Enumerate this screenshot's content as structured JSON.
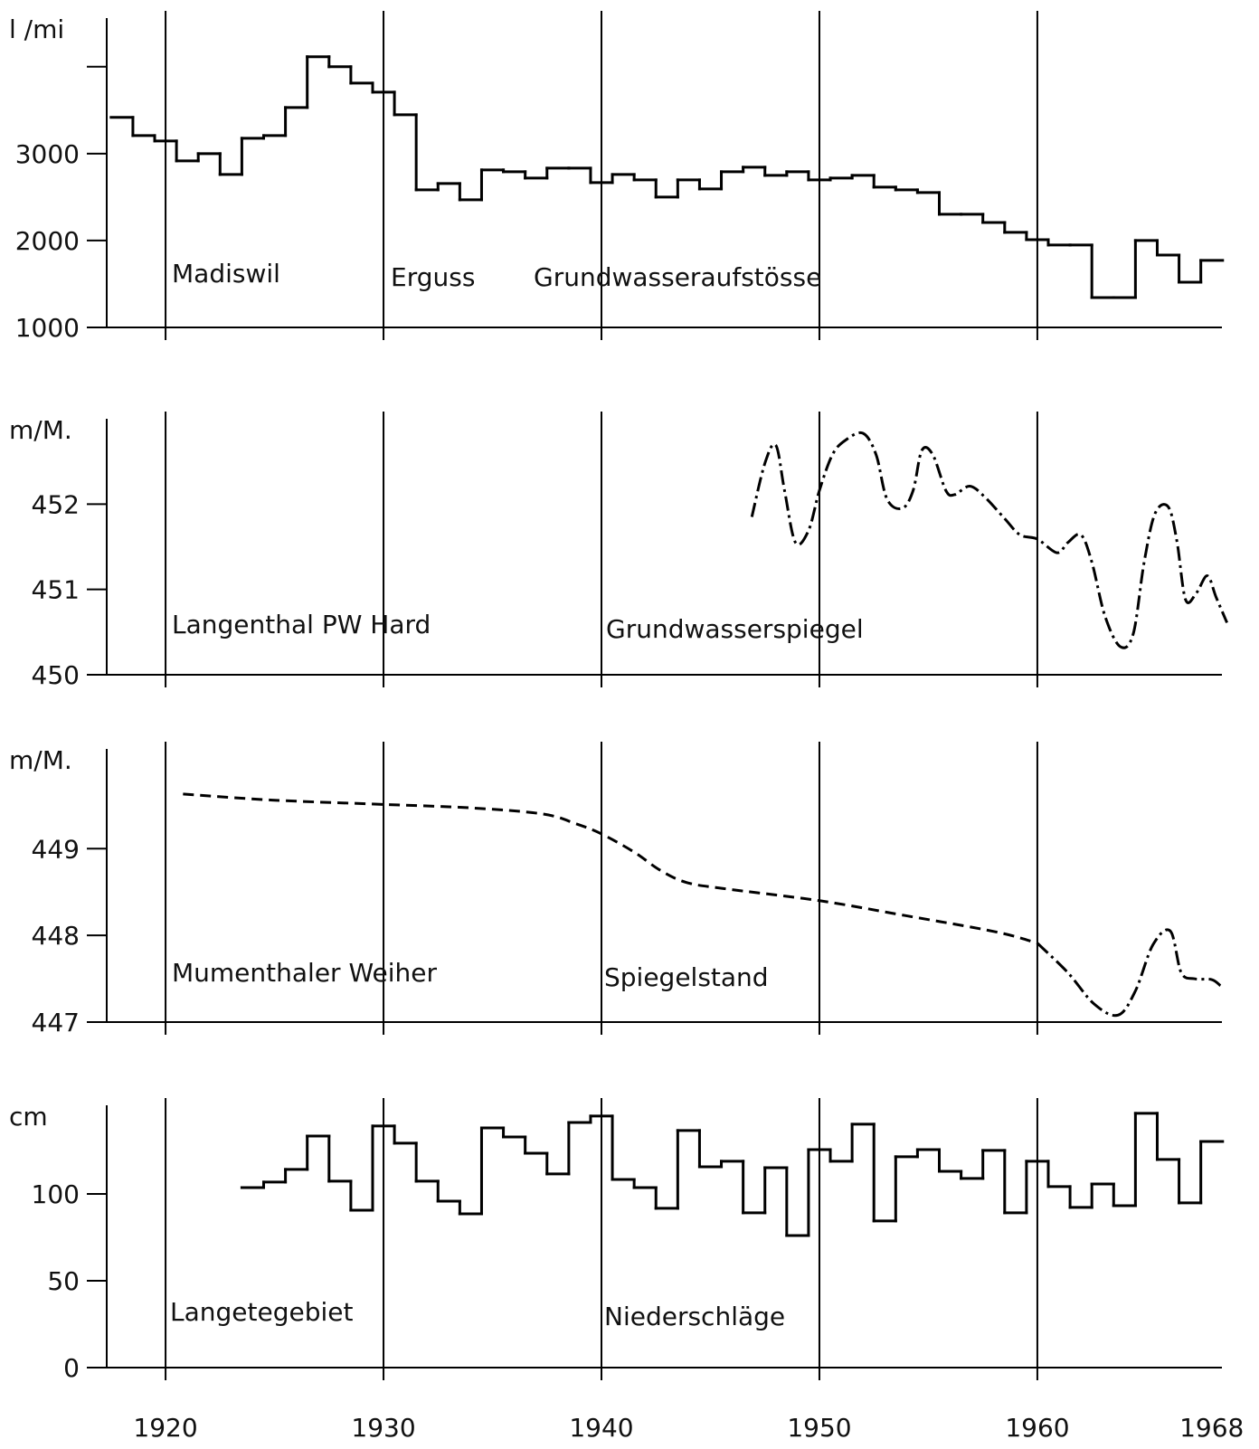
{
  "chart_data": [
    {
      "type": "step",
      "ylabel": "l /mi",
      "annotations": [
        "Madiswil",
        "Erguss",
        "Grundwasseraufstösse"
      ],
      "xlim": [
        1917.3,
        1968.8
      ],
      "xgrid": [
        1920,
        1930,
        1940,
        1950,
        1960
      ],
      "ylim": [
        1000,
        4560
      ],
      "yticks": [
        1000,
        2000,
        3000,
        {
          "value": 4000,
          "label": null
        }
      ],
      "series": [
        {
          "color": "#000000",
          "style": "solid",
          "x": [
            1918,
            1919,
            1920,
            1921,
            1922,
            1923,
            1924,
            1925,
            1926,
            1927,
            1928,
            1929,
            1930,
            1931,
            1932,
            1933,
            1934,
            1935,
            1936,
            1937,
            1938,
            1939,
            1940,
            1941,
            1942,
            1943,
            1944,
            1945,
            1946,
            1947,
            1948,
            1949,
            1950,
            1951,
            1952,
            1953,
            1954,
            1955,
            1956,
            1957,
            1958,
            1959,
            1960,
            1961,
            1962,
            1963,
            1964,
            1965,
            1966,
            1967,
            1968
          ],
          "values": [
            3417,
            3208,
            3146,
            2917,
            3000,
            2760,
            3177,
            3208,
            3531,
            4115,
            4000,
            3812,
            3708,
            3448,
            2583,
            2656,
            2469,
            2813,
            2792,
            2719,
            2833,
            2833,
            2667,
            2760,
            2698,
            2500,
            2698,
            2594,
            2792,
            2844,
            2750,
            2792,
            2698,
            2719,
            2750,
            2615,
            2583,
            2552,
            2302,
            2302,
            2208,
            2094,
            2010,
            1948,
            1948,
            1344,
            1344,
            2000,
            1833,
            1521,
            1771
          ]
        }
      ]
    },
    {
      "type": "line",
      "ylabel": "m/M.",
      "annotations": [
        "Langenthal PW Hard",
        "Grundwasserspiegel"
      ],
      "xlim": [
        1917.3,
        1968.8
      ],
      "xgrid": [
        1920,
        1930,
        1940,
        1950,
        1960
      ],
      "ylim": [
        450,
        453
      ],
      "yticks": [
        450,
        451,
        452
      ],
      "series": [
        {
          "color": "#000000",
          "style": "dashdot",
          "x": [
            1946.9,
            1947.5,
            1948.0,
            1948.4,
            1948.9,
            1949.5,
            1950.0,
            1950.6,
            1951.2,
            1952.0,
            1952.6,
            1953.1,
            1953.8,
            1954.3,
            1954.7,
            1955.2,
            1955.8,
            1956.2,
            1956.9,
            1957.6,
            1958.5,
            1959.2,
            1960.0,
            1960.9,
            1961.4,
            1962.0,
            1962.5,
            1963.1,
            1963.8,
            1964.4,
            1964.9,
            1965.4,
            1966.0,
            1966.4,
            1966.8,
            1967.3,
            1967.8,
            1968.2,
            1968.7
          ],
          "values": [
            451.85,
            452.48,
            452.69,
            452.16,
            451.55,
            451.69,
            452.16,
            452.58,
            452.75,
            452.83,
            452.58,
            452.06,
            451.95,
            452.16,
            452.63,
            452.58,
            452.16,
            452.11,
            452.21,
            452.08,
            451.83,
            451.64,
            451.59,
            451.43,
            451.55,
            451.64,
            451.32,
            450.69,
            450.33,
            450.48,
            451.32,
            451.89,
            451.97,
            451.57,
            450.88,
            450.96,
            451.16,
            450.91,
            450.61
          ]
        }
      ]
    },
    {
      "type": "line",
      "ylabel": "m/M.",
      "annotations": [
        "Mumenthaler Weiher",
        "Spiegelstand"
      ],
      "xlim": [
        1917.3,
        1968.8
      ],
      "xgrid": [
        1920,
        1930,
        1940,
        1950,
        1960
      ],
      "ylim": [
        447,
        450.15
      ],
      "yticks": [
        447,
        448,
        449
      ],
      "series": [
        {
          "color": "#000000",
          "style": "dashed",
          "x": [
            1920.8,
            1924.9,
            1930.0,
            1934.0,
            1937.3,
            1938.8,
            1940.0,
            1941.5,
            1942.7,
            1943.9,
            1945.6,
            1950.0,
            1953.9,
            1958.1,
            1960.0
          ],
          "values": [
            449.63,
            449.56,
            449.51,
            449.47,
            449.4,
            449.29,
            449.17,
            448.96,
            448.75,
            448.61,
            448.54,
            448.4,
            448.23,
            448.04,
            447.91
          ]
        },
        {
          "color": "#000000",
          "style": "dashdot",
          "x": [
            1960.0,
            1961.4,
            1962.6,
            1963.7,
            1964.5,
            1965.3,
            1966.1,
            1966.6,
            1967.2,
            1968.0,
            1968.4
          ],
          "values": [
            447.91,
            447.57,
            447.21,
            447.08,
            447.36,
            447.89,
            448.05,
            447.57,
            447.5,
            447.49,
            447.42
          ]
        }
      ]
    },
    {
      "type": "step",
      "ylabel": "cm",
      "annotations": [
        "Langetegebiet",
        "Niederschläge"
      ],
      "xlim": [
        1917.3,
        1968.8
      ],
      "xgrid": [
        1920,
        1930,
        1940,
        1950,
        1960
      ],
      "xticks": [
        1920,
        1930,
        1940,
        1950,
        1960,
        1968
      ],
      "ylim": [
        0,
        151
      ],
      "yticks": [
        0,
        50,
        100
      ],
      "series": [
        {
          "color": "#000000",
          "style": "solid",
          "x": [
            1924,
            1925,
            1926,
            1927,
            1928,
            1929,
            1930,
            1931,
            1932,
            1933,
            1934,
            1935,
            1936,
            1937,
            1938,
            1939,
            1940,
            1941,
            1942,
            1943,
            1944,
            1945,
            1946,
            1947,
            1948,
            1949,
            1950,
            1951,
            1952,
            1953,
            1954,
            1955,
            1956,
            1957,
            1958,
            1959,
            1960,
            1961,
            1962,
            1963,
            1964,
            1965,
            1966,
            1967,
            1968
          ],
          "values": [
            103.6,
            106.8,
            114.1,
            133.3,
            107.3,
            90.6,
            139.1,
            129.2,
            107.3,
            95.8,
            88.5,
            138.0,
            132.8,
            123.4,
            111.5,
            141.1,
            144.8,
            108.3,
            103.6,
            91.7,
            136.5,
            115.6,
            118.8,
            89.1,
            115.1,
            76.0,
            125.5,
            118.8,
            140.1,
            84.4,
            121.4,
            125.5,
            113.0,
            108.9,
            125.0,
            89.1,
            118.8,
            104.2,
            92.2,
            105.7,
            93.2,
            146.4,
            119.8,
            94.8,
            130.2
          ]
        }
      ]
    }
  ]
}
